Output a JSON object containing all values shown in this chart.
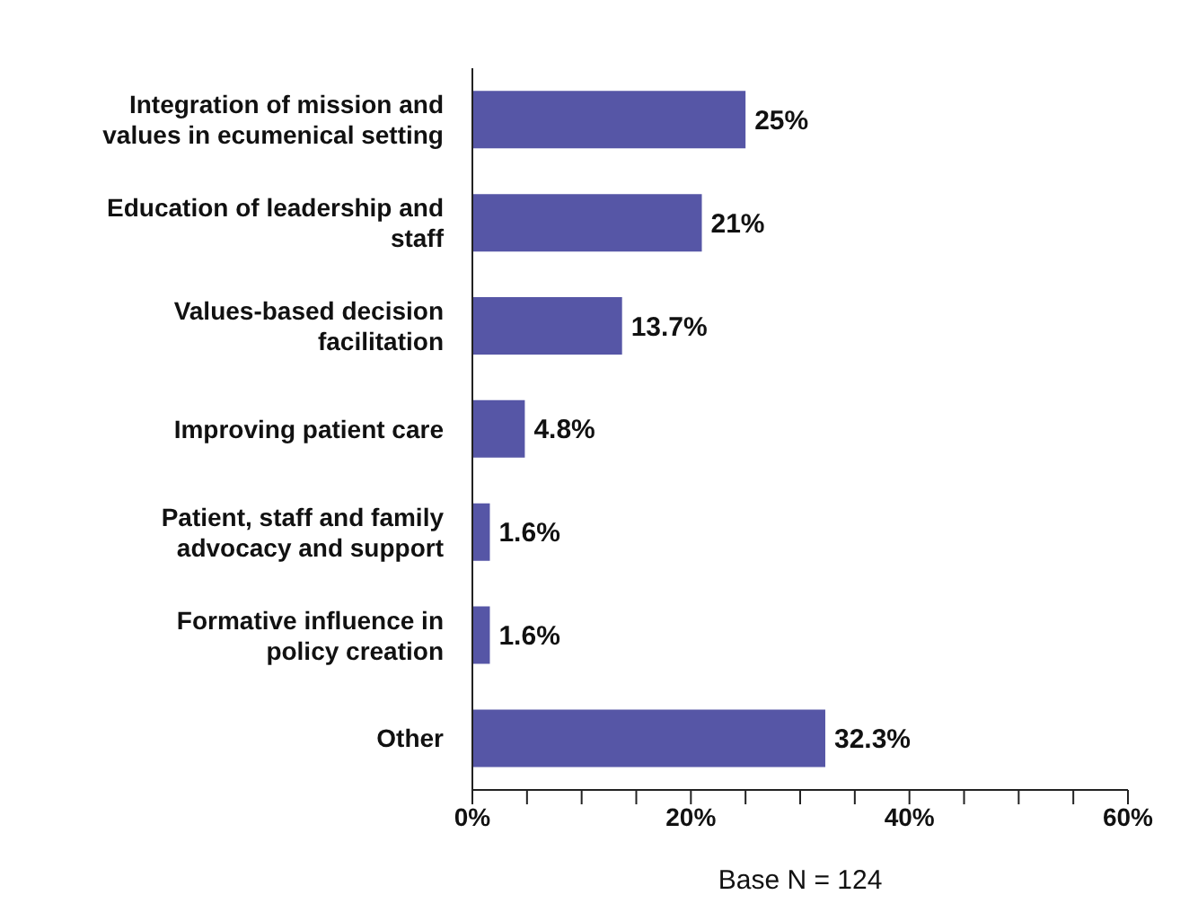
{
  "chart_data": {
    "type": "bar",
    "orientation": "horizontal",
    "categories": [
      "Integration of mission and values in ecumenical setting",
      "Education of leadership and staff",
      "Values-based decision facilitation",
      "Improving patient care",
      "Patient, staff and family advocacy and support",
      "Formative influence in policy creation",
      "Other"
    ],
    "values": [
      25,
      21,
      13.7,
      4.8,
      1.6,
      1.6,
      32.3
    ],
    "value_labels": [
      "25%",
      "21%",
      "13.7%",
      "4.8%",
      "1.6%",
      "1.6%",
      "32.3%"
    ],
    "color": "#5656a6",
    "xlim": [
      0,
      60
    ],
    "xticks": [
      {
        "value": 0,
        "label": "0%"
      },
      {
        "value": 5,
        "label": null
      },
      {
        "value": 10,
        "label": null
      },
      {
        "value": 15,
        "label": null
      },
      {
        "value": 20,
        "label": "20%"
      },
      {
        "value": 25,
        "label": null
      },
      {
        "value": 30,
        "label": null
      },
      {
        "value": 35,
        "label": null
      },
      {
        "value": 40,
        "label": "40%"
      },
      {
        "value": 45,
        "label": null
      },
      {
        "value": 50,
        "label": null
      },
      {
        "value": 55,
        "label": null
      },
      {
        "value": 60,
        "label": "60%"
      }
    ],
    "xlabel": "Base N = 124",
    "grid": false
  }
}
